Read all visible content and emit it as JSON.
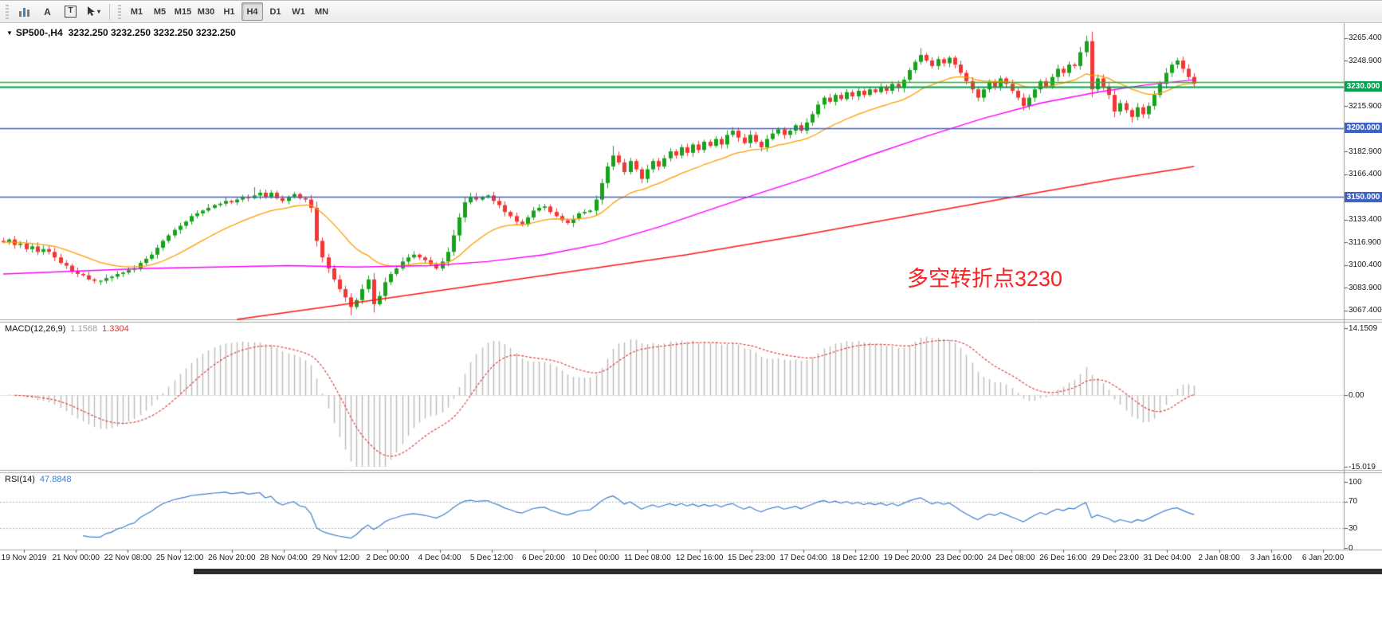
{
  "toolbar": {
    "tools": [
      {
        "name": "bar-chart-tool"
      },
      {
        "name": "text-annotation-tool",
        "label": "A"
      },
      {
        "name": "text-label-tool",
        "label": "T"
      },
      {
        "name": "cursor-tool"
      }
    ],
    "timeframes": [
      "M1",
      "M5",
      "M15",
      "M30",
      "H1",
      "H4",
      "D1",
      "W1",
      "MN"
    ],
    "active_timeframe": "H4"
  },
  "chart": {
    "symbol": "SP500-,H4",
    "ohlc_line": "3232.250 3232.250 3232.250 3232.250",
    "annotation": {
      "text": "多空转折点3230",
      "color": "#ff2020"
    }
  },
  "chart_data": {
    "type": "candlestick",
    "symbol": "SP500-",
    "timeframe": "H4",
    "current_ohlc": [
      3232.25,
      3232.25,
      3232.25,
      3232.25
    ],
    "ylim": [
      3061,
      3275
    ],
    "price_ticks": [
      3265.4,
      3248.9,
      3232.4,
      3215.9,
      3199.4,
      3182.9,
      3166.4,
      3149.9,
      3133.4,
      3116.9,
      3100.4,
      3083.9,
      3067.4
    ],
    "price_decimals": 3,
    "up_color": "#17a21b",
    "down_color": "#f23636",
    "closes": [
      3117,
      3119,
      3115,
      3116,
      3112,
      3114,
      3110,
      3112,
      3110,
      3106,
      3102,
      3100,
      3096,
      3094,
      3093,
      3090,
      3089,
      3089,
      3091,
      3092,
      3094,
      3095,
      3097,
      3098,
      3102,
      3105,
      3108,
      3113,
      3118,
      3122,
      3126,
      3129,
      3132,
      3136,
      3138,
      3140,
      3142,
      3144,
      3145,
      3147,
      3146,
      3148,
      3150,
      3149,
      3151,
      3153,
      3150,
      3153,
      3149,
      3147,
      3150,
      3152,
      3149,
      3148,
      3142,
      3118,
      3106,
      3098,
      3090,
      3083,
      3077,
      3070,
      3075,
      3083,
      3090,
      3072,
      3078,
      3088,
      3094,
      3098,
      3103,
      3106,
      3108,
      3106,
      3104,
      3101,
      3098,
      3103,
      3110,
      3122,
      3135,
      3146,
      3150,
      3148,
      3150,
      3151,
      3147,
      3144,
      3139,
      3136,
      3132,
      3130,
      3135,
      3140,
      3142,
      3143,
      3139,
      3136,
      3133,
      3131,
      3134,
      3138,
      3139,
      3140,
      3148,
      3160,
      3172,
      3180,
      3175,
      3168,
      3176,
      3170,
      3163,
      3170,
      3176,
      3172,
      3178,
      3183,
      3180,
      3186,
      3182,
      3188,
      3184,
      3190,
      3187,
      3192,
      3188,
      3195,
      3198,
      3193,
      3189,
      3195,
      3190,
      3186,
      3192,
      3196,
      3199,
      3195,
      3198,
      3202,
      3198,
      3204,
      3210,
      3217,
      3222,
      3219,
      3224,
      3221,
      3226,
      3223,
      3227,
      3224,
      3228,
      3226,
      3230,
      3227,
      3232,
      3229,
      3235,
      3242,
      3248,
      3253,
      3249,
      3245,
      3250,
      3247,
      3251,
      3246,
      3240,
      3234,
      3228,
      3222,
      3228,
      3233,
      3230,
      3236,
      3232,
      3227,
      3222,
      3216,
      3222,
      3228,
      3234,
      3230,
      3237,
      3243,
      3240,
      3246,
      3245,
      3255,
      3263,
      3228,
      3236,
      3230,
      3224,
      3212,
      3218,
      3213,
      3208,
      3215,
      3210,
      3216,
      3224,
      3232,
      3240,
      3246,
      3249,
      3243,
      3237,
      3232.25
    ],
    "wick_overrides": {
      "17": {
        "low": 3086
      },
      "44": {
        "high": 3157
      },
      "61": {
        "low": 3064
      },
      "65": {
        "low": 3066
      },
      "107": {
        "high": 3187
      },
      "161": {
        "high": 3258
      },
      "190": {
        "high": 3267
      },
      "198": {
        "low": 3204
      }
    },
    "ma_fast": {
      "type": "ema",
      "period": 20,
      "color": "#ff9d00"
    },
    "ma_mid": {
      "color": "#ff00ff",
      "anchors": [
        [
          0,
          3094
        ],
        [
          25,
          3098
        ],
        [
          50,
          3100
        ],
        [
          62,
          3099
        ],
        [
          75,
          3100
        ],
        [
          85,
          3103
        ],
        [
          95,
          3108
        ],
        [
          105,
          3116
        ],
        [
          115,
          3128
        ],
        [
          125,
          3142
        ],
        [
          133,
          3153
        ],
        [
          142,
          3165
        ],
        [
          152,
          3180
        ],
        [
          162,
          3194
        ],
        [
          172,
          3207
        ],
        [
          182,
          3218
        ],
        [
          192,
          3226
        ],
        [
          200,
          3231
        ],
        [
          209,
          3235
        ]
      ]
    },
    "ma_slow": {
      "color": "#ff1414",
      "anchors": [
        [
          41,
          3061
        ],
        [
          60,
          3072
        ],
        [
          80,
          3084
        ],
        [
          100,
          3096
        ],
        [
          120,
          3108
        ],
        [
          140,
          3122
        ],
        [
          160,
          3137
        ],
        [
          180,
          3152
        ],
        [
          195,
          3163
        ],
        [
          209,
          3172
        ]
      ]
    },
    "hlines": [
      {
        "price": 3233.5,
        "color": "#2db52d",
        "width": 1.3,
        "badge": null,
        "badge_color": null
      },
      {
        "price": 3230.0,
        "color": "#00a44e",
        "width": 2.2,
        "badge": "3230.000",
        "badge_color": "#00a44e"
      },
      {
        "price": 3200.0,
        "color": "#3f62c9",
        "width": 1.3,
        "badge": "3200.000",
        "badge_color": "#3f62c9"
      },
      {
        "price": 3150.0,
        "color": "#3f62c9",
        "width": 1.3,
        "badge": "3150.000",
        "badge_color": "#3f62c9"
      }
    ],
    "macd": {
      "label": "MACD(12,26,9)",
      "value": "1.1568",
      "signal_value": "1.3304",
      "fast": 12,
      "slow": 26,
      "signal": 9,
      "axis_max": 14.1509,
      "axis_min": -15.019,
      "axis_labels": [
        "14.1509",
        "0.00",
        "-15.019"
      ],
      "hist_color": "#bababa",
      "signal_color": "#dd3434"
    },
    "rsi": {
      "label": "RSI(14)",
      "value": "47.8848",
      "period": 14,
      "axis_labels": [
        "100",
        "70",
        "30",
        "0"
      ],
      "axis_values": [
        100,
        70,
        30,
        0
      ],
      "levels": [
        70,
        30
      ],
      "color": "#3f7fce"
    },
    "time_labels": [
      "19 Nov 2019",
      "21 Nov 00:00",
      "22 Nov 08:00",
      "25 Nov 12:00",
      "26 Nov 20:00",
      "28 Nov 04:00",
      "29 Nov 12:00",
      "2 Dec 00:00",
      "4 Dec 04:00",
      "5 Dec 12:00",
      "6 Dec 20:00",
      "10 Dec 00:00",
      "11 Dec 08:00",
      "12 Dec 16:00",
      "15 Dec 23:00",
      "17 Dec 04:00",
      "18 Dec 12:00",
      "19 Dec 20:00",
      "23 Dec 00:00",
      "24 Dec 08:00",
      "26 Dec 16:00",
      "29 Dec 23:00",
      "31 Dec 04:00",
      "2 Jan 08:00",
      "3 Jan 16:00",
      "6 Jan 20:00"
    ]
  }
}
